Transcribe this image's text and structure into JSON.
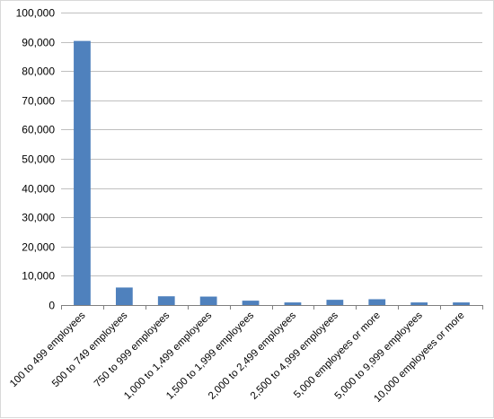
{
  "chart_data": {
    "type": "bar",
    "title": "",
    "xlabel": "",
    "ylabel": "",
    "ylim": [
      0,
      100000
    ],
    "y_ticks": [
      0,
      10000,
      20000,
      30000,
      40000,
      50000,
      60000,
      70000,
      80000,
      90000,
      100000
    ],
    "y_tick_labels": [
      "0",
      "10,000",
      "20,000",
      "30,000",
      "40,000",
      "50,000",
      "60,000",
      "70,000",
      "80,000",
      "90,000",
      "100,000"
    ],
    "grid": true,
    "legend": "none",
    "bar_color": "#4f81bd",
    "categories": [
      "100 to 499 employees",
      "500 to 749 employees",
      "750 to 999 employees",
      "1,000 to 1,499 employees",
      "1,500 to 1,999 employees",
      "2,000 to 2,499 employees",
      "2,500 to 4,999 employees",
      "5,000 employees or more",
      "5,000 to 9,999 employees",
      "10,000 employees or more"
    ],
    "values": [
      90300,
      6000,
      3000,
      2900,
      1500,
      900,
      1800,
      2000,
      900,
      900
    ]
  }
}
